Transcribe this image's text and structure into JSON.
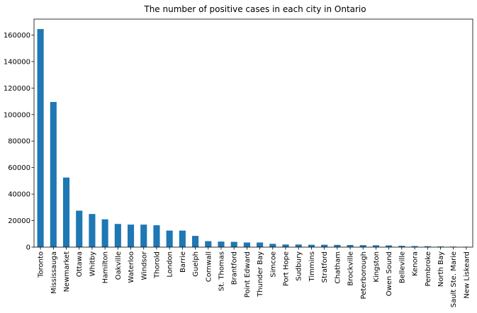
{
  "chart_data": {
    "type": "bar",
    "title": "The number of positive cases in each city in Ontario",
    "xlabel": "",
    "ylabel": "",
    "ylim": [
      0,
      172000
    ],
    "yticks": [
      0,
      20000,
      40000,
      60000,
      80000,
      100000,
      120000,
      140000,
      160000
    ],
    "grid": false,
    "legend": "none",
    "bar_color": "#1f77b4",
    "categories": [
      "Toronto",
      "Mississauga",
      "Newmarket",
      "Ottawa",
      "Whitby",
      "Hamilton",
      "Oakville",
      "Waterloo",
      "Windsor",
      "Thorold",
      "London",
      "Barrie",
      "Guelph",
      "Cornwall",
      "St. Thomas",
      "Brantford",
      "Point Edward",
      "Thunder Bay",
      "Simcoe",
      "Port Hope",
      "Sudbury",
      "Timmins",
      "Stratford",
      "Chatham",
      "Brockville",
      "Peterborough",
      "Kingston",
      "Owen Sound",
      "Belleville",
      "Kenora",
      "Pembroke",
      "North Bay",
      "Sault Ste. Marie",
      "New Liskeard"
    ],
    "values": [
      164500,
      109500,
      52500,
      27500,
      25000,
      21000,
      17500,
      17000,
      17000,
      16500,
      12500,
      12500,
      8500,
      4500,
      4200,
      4000,
      3500,
      3500,
      2500,
      2000,
      2000,
      1800,
      1800,
      1700,
      1600,
      1500,
      1400,
      1300,
      1000,
      800,
      700,
      500,
      400,
      300
    ]
  }
}
